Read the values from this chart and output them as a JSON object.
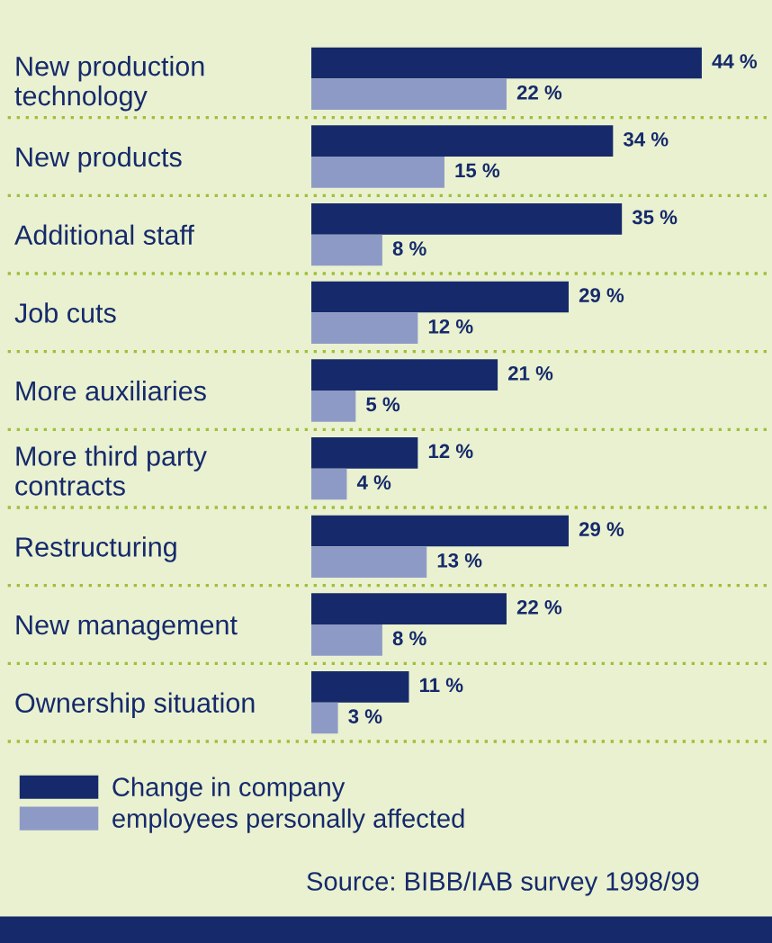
{
  "chart_data": {
    "type": "bar",
    "orientation": "horizontal",
    "categories": [
      "New production\ntechnology",
      "New products",
      "Additional staff",
      "Job cuts",
      "More auxiliaries",
      "More third party\ncontracts",
      "Restructuring",
      "New management",
      "Ownership situation"
    ],
    "series": [
      {
        "name": "Change in company",
        "color": "#162a6b",
        "values": [
          44,
          34,
          35,
          29,
          21,
          12,
          29,
          22,
          11
        ],
        "value_labels": [
          "44 %",
          "34 %",
          "35 %",
          "29 %",
          "21 %",
          "12 %",
          "29 %",
          "22 %",
          "11 %"
        ]
      },
      {
        "name": "employees personally affected",
        "color": "#8e9ac6",
        "values": [
          22,
          15,
          8,
          12,
          5,
          4,
          13,
          8,
          3
        ],
        "value_labels": [
          "22 %",
          "15 %",
          "8 %",
          "12 %",
          "5 %",
          "4 %",
          "13 %",
          "8 %",
          "3 %"
        ]
      }
    ],
    "annotations": [
      "Source: BIBB/IAB survey 1998/99"
    ],
    "legend": "bottom left",
    "grid": "y",
    "tick_labels": "y"
  }
}
